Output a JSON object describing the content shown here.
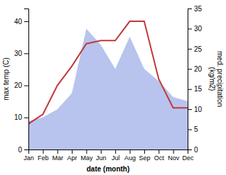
{
  "chart_data": {
    "type": "line",
    "categories": [
      "Jan",
      "Feb",
      "Mar",
      "Apr",
      "May",
      "Jun",
      "Jul",
      "Aug",
      "Sep",
      "Oct",
      "Nov",
      "Dec"
    ],
    "xlabel": "date (month)",
    "ylabel": "max temp (C)",
    "y2label": "med. precipitation\n(kg/m2)",
    "series": [
      {
        "type": "area",
        "axis": "y2",
        "color": "#b8c4ee",
        "values": [
          7,
          8,
          10,
          14,
          30,
          26,
          20,
          28,
          20,
          17,
          13,
          12
        ]
      },
      {
        "type": "line",
        "color": "#c0393b",
        "values": [
          8,
          11,
          20,
          26,
          33,
          34,
          34,
          40,
          40,
          22,
          13,
          13
        ]
      }
    ],
    "ylim": [
      0,
      44
    ],
    "yticks": [
      0,
      10,
      20,
      30,
      40
    ],
    "y2lim": [
      0,
      35
    ],
    "y2ticks": [
      0,
      5,
      10,
      15,
      20,
      25,
      30,
      35
    ]
  }
}
